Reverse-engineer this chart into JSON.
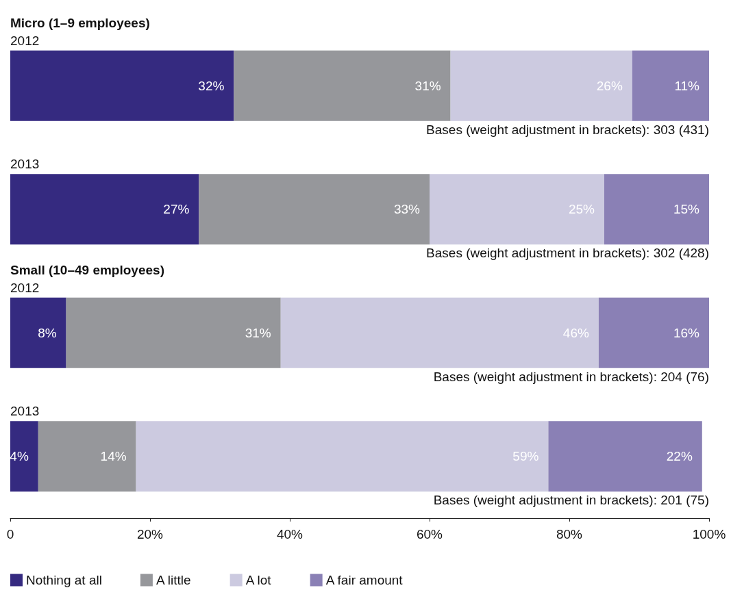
{
  "chart_data": {
    "type": "bar",
    "orientation": "horizontal",
    "stacked": true,
    "categories": [
      "2012",
      "2013",
      "2012",
      "2013"
    ],
    "series": [
      {
        "name": "Nothing at all",
        "color": "#352a80",
        "values": [
          32,
          27,
          8,
          4
        ],
        "value_labels": [
          "32%",
          "27%",
          "8%",
          "4%"
        ]
      },
      {
        "name": "A little",
        "color": "#96979b",
        "values": [
          31,
          33,
          30.7,
          14
        ],
        "value_labels": [
          "31%",
          "33%",
          "31%",
          "14%"
        ]
      },
      {
        "name": "A lot",
        "color": "#cccae0",
        "values": [
          26,
          25,
          45.5,
          59
        ],
        "value_labels": [
          "26%",
          "25%",
          "46%",
          "59%"
        ]
      },
      {
        "name": "A fair amount",
        "color": "#8a80b5",
        "values": [
          11,
          15,
          15.8,
          22
        ],
        "value_labels": [
          "11%",
          "15%",
          "16%",
          "22%"
        ]
      }
    ],
    "xlim": [
      0,
      100
    ],
    "xticks": [
      0,
      {
        "value": 20,
        "label": "20%"
      },
      {
        "value": 40,
        "label": "40%"
      },
      {
        "value": 60,
        "label": "60%"
      },
      {
        "value": 80,
        "label": "80%"
      },
      {
        "value": 100,
        "label": "100%"
      }
    ],
    "annotations": [
      "Micro (1–9 employees)",
      "Bases (weight adjustment in brackets): 303 (431)",
      "Bases (weight adjustment in brackets): 302 (428)",
      "Small (10–49 employees)",
      "Bases (weight adjustment in brackets): 204 (76)",
      "Bases (weight adjustment in brackets): 201 (75)"
    ],
    "legend": "bottom left",
    "grid": false
  }
}
